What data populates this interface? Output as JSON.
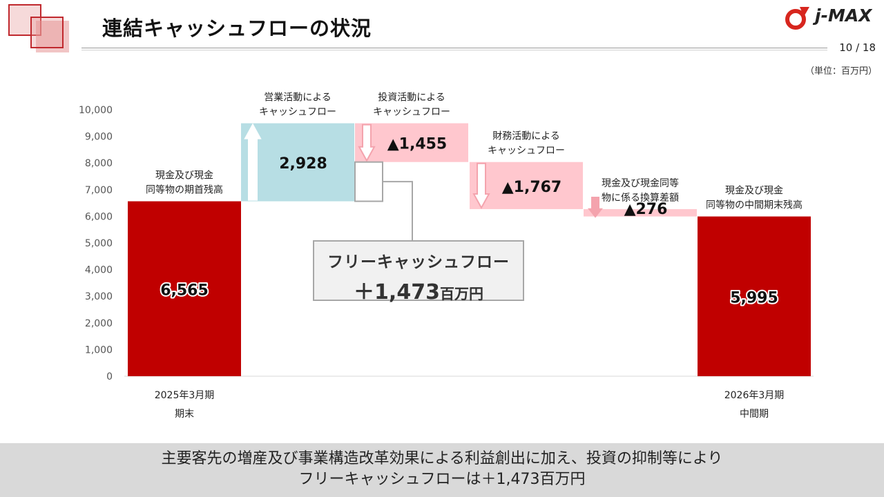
{
  "header": {
    "title": "連結キャッシュフローの状況",
    "logo_text": "j-MAX",
    "page_number": "10 / 18",
    "unit": "（単位：百万円）"
  },
  "colors": {
    "accent_red": "#c00000",
    "teal": "#b7dee4",
    "pink": "#ffc7ce",
    "deco_red": "#c0282d"
  },
  "chart_data": {
    "type": "waterfall",
    "ylim": [
      0,
      10000
    ],
    "y_ticks": [
      "0",
      "1,000",
      "2,000",
      "3,000",
      "4,000",
      "5,000",
      "6,000",
      "7,000",
      "8,000",
      "9,000",
      "10,000"
    ],
    "bars": [
      {
        "kind": "total",
        "value": 6565,
        "value_label": "6,565",
        "label_lines": [
          "現金及び現金",
          "同等物の期首残高"
        ],
        "x_lines": [
          "2025年3月期",
          "期末"
        ]
      },
      {
        "kind": "up",
        "value": 2928,
        "value_label": "2,928",
        "label_lines": [
          "営業活動による",
          "キャッシュフロー"
        ],
        "x_lines": []
      },
      {
        "kind": "down",
        "value": -1455,
        "value_label": "▲1,455",
        "label_lines": [
          "投資活動による",
          "キャッシュフロー"
        ],
        "x_lines": []
      },
      {
        "kind": "down",
        "value": -1767,
        "value_label": "▲1,767",
        "label_lines": [
          "財務活動による",
          "キャッシュフロー"
        ],
        "x_lines": []
      },
      {
        "kind": "down",
        "value": -276,
        "value_label": "▲276",
        "label_lines": [
          "現金及び現金同等",
          "物に係る換算差額"
        ],
        "x_lines": []
      },
      {
        "kind": "total",
        "value": 5995,
        "value_label": "5,995",
        "label_lines": [
          "現金及び現金",
          "同等物の中間期末残高"
        ],
        "x_lines": [
          "2026年3月期",
          "中間期"
        ]
      }
    ],
    "free_cash_flow": {
      "label": "フリーキャッシュフロー",
      "value": "＋1,473",
      "unit": "百万円"
    }
  },
  "footer": {
    "line1": "主要客先の増産及び事業構造改革効果による利益創出に加え、投資の抑制等により",
    "line2": "フリーキャッシュフローは＋1,473百万円"
  }
}
